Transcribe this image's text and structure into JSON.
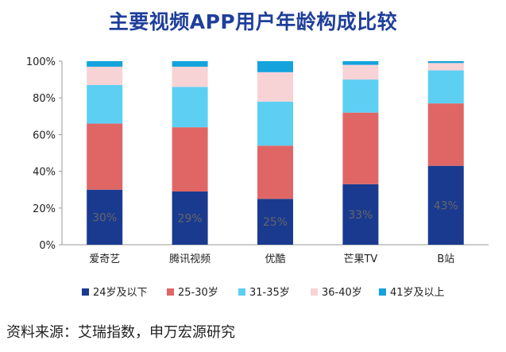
{
  "title": "主要视频APP用户年龄构成比较",
  "source": "资料来源：艾瑞指数，申万宏源研究",
  "chart_data": {
    "type": "bar",
    "stacked": true,
    "categories": [
      "爱奇艺",
      "腾讯视频",
      "优酷",
      "芒果TV",
      "B站"
    ],
    "series": [
      {
        "name": "24岁及以下",
        "color": "#1a3a8f",
        "values": [
          30,
          29,
          25,
          33,
          43
        ]
      },
      {
        "name": "25-30岁",
        "color": "#e06666",
        "values": [
          36,
          35,
          29,
          39,
          34
        ]
      },
      {
        "name": "31-35岁",
        "color": "#5ccff3",
        "values": [
          21,
          22,
          24,
          18,
          18
        ]
      },
      {
        "name": "36-40岁",
        "color": "#f7d3d6",
        "values": [
          10,
          11,
          16,
          8,
          4
        ]
      },
      {
        "name": "41岁及以上",
        "color": "#14a3dc",
        "values": [
          3,
          3,
          6,
          2,
          1
        ]
      }
    ],
    "data_labels": [
      "30%",
      "29%",
      "25%",
      "33%",
      "43%"
    ],
    "yticks": [
      "0%",
      "20%",
      "40%",
      "60%",
      "80%",
      "100%"
    ],
    "ylim": [
      0,
      100
    ],
    "grid": false,
    "legend_position": "bottom"
  }
}
